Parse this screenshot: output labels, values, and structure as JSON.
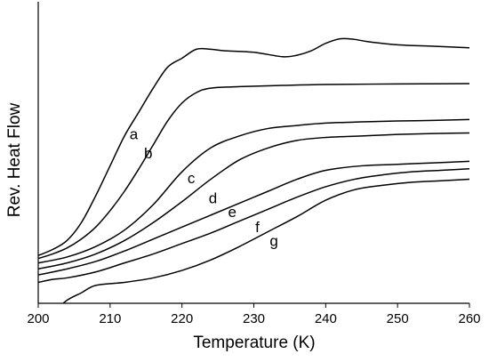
{
  "chart_data": {
    "type": "line",
    "xlabel": "Temperature (K)",
    "ylabel": "Rev. Heat Flow",
    "xlim": [
      200,
      260
    ],
    "ylim": [
      0,
      100
    ],
    "xticks": [
      "200",
      "210",
      "220",
      "230",
      "240",
      "250",
      "260"
    ],
    "grid": false,
    "legend": "none",
    "series": [
      {
        "name": "a",
        "label_x": 213.3,
        "label_y": 56.3,
        "points": [
          [
            200,
            16
          ],
          [
            202,
            18
          ],
          [
            204,
            21
          ],
          [
            206,
            27
          ],
          [
            208,
            36
          ],
          [
            210,
            46
          ],
          [
            212,
            56
          ],
          [
            214,
            64
          ],
          [
            216,
            72
          ],
          [
            218,
            79
          ],
          [
            220,
            82
          ],
          [
            222,
            85
          ],
          [
            224,
            85
          ],
          [
            226,
            84.5
          ],
          [
            230,
            84
          ],
          [
            234,
            82.5
          ],
          [
            236,
            83
          ],
          [
            238,
            84.5
          ],
          [
            240,
            87
          ],
          [
            242,
            88.5
          ],
          [
            244,
            88.3
          ],
          [
            246,
            87.5
          ],
          [
            250,
            86.5
          ],
          [
            255,
            86
          ],
          [
            260,
            85.5
          ]
        ]
      },
      {
        "name": "b",
        "label_x": 215.3,
        "label_y": 49.8,
        "points": [
          [
            200,
            15
          ],
          [
            202,
            16.5
          ],
          [
            204,
            18.5
          ],
          [
            206,
            21.5
          ],
          [
            208,
            25.5
          ],
          [
            210,
            31
          ],
          [
            212,
            37.5
          ],
          [
            214,
            45
          ],
          [
            216,
            53
          ],
          [
            218,
            61
          ],
          [
            220,
            67
          ],
          [
            222,
            70.5
          ],
          [
            224,
            72
          ],
          [
            228,
            72.5
          ],
          [
            234,
            72.9
          ],
          [
            240,
            73.2
          ],
          [
            250,
            73.4
          ],
          [
            260,
            73.5
          ]
        ]
      },
      {
        "name": "c",
        "label_x": 221.3,
        "label_y": 41.5,
        "points": [
          [
            200,
            13.5
          ],
          [
            204,
            15.5
          ],
          [
            208,
            19
          ],
          [
            212,
            24.5
          ],
          [
            216,
            33
          ],
          [
            220,
            44
          ],
          [
            224,
            52
          ],
          [
            228,
            56
          ],
          [
            232,
            58.5
          ],
          [
            236,
            59.5
          ],
          [
            240,
            60.3
          ],
          [
            245,
            60.7
          ],
          [
            250,
            61
          ],
          [
            255,
            61.2
          ],
          [
            260,
            61.5
          ]
        ]
      },
      {
        "name": "d",
        "label_x": 224.3,
        "label_y": 34.8,
        "points": [
          [
            200,
            11.5
          ],
          [
            204,
            13.5
          ],
          [
            208,
            16.5
          ],
          [
            212,
            21
          ],
          [
            216,
            27
          ],
          [
            220,
            34
          ],
          [
            224,
            41.5
          ],
          [
            228,
            48
          ],
          [
            232,
            52
          ],
          [
            236,
            54.5
          ],
          [
            240,
            55.5
          ],
          [
            245,
            56
          ],
          [
            250,
            56.5
          ],
          [
            255,
            56.8
          ],
          [
            260,
            57
          ]
        ]
      },
      {
        "name": "e",
        "label_x": 227.0,
        "label_y": 30.2,
        "points": [
          [
            200,
            9.5
          ],
          [
            204,
            11.5
          ],
          [
            208,
            14
          ],
          [
            212,
            17.5
          ],
          [
            216,
            21.5
          ],
          [
            220,
            25.5
          ],
          [
            224,
            29.5
          ],
          [
            228,
            33.5
          ],
          [
            232,
            37.5
          ],
          [
            236,
            41.5
          ],
          [
            240,
            44.5
          ],
          [
            245,
            46
          ],
          [
            250,
            46.5
          ],
          [
            255,
            47
          ],
          [
            260,
            47.5
          ]
        ]
      },
      {
        "name": "f",
        "label_x": 230.5,
        "label_y": 25.2,
        "points": [
          [
            200,
            7
          ],
          [
            202,
            8
          ],
          [
            204,
            8.5
          ],
          [
            208,
            10.5
          ],
          [
            212,
            13.5
          ],
          [
            216,
            16.5
          ],
          [
            220,
            20
          ],
          [
            224,
            23.5
          ],
          [
            228,
            27.5
          ],
          [
            232,
            31.5
          ],
          [
            236,
            35.5
          ],
          [
            240,
            39
          ],
          [
            244,
            41.5
          ],
          [
            248,
            43
          ],
          [
            252,
            44
          ],
          [
            256,
            44.5
          ],
          [
            260,
            45
          ]
        ]
      },
      {
        "name": "g",
        "label_x": 232.8,
        "label_y": 20.5,
        "points": [
          [
            200,
            -5
          ],
          [
            202,
            -3
          ],
          [
            204,
            1
          ],
          [
            206,
            3.5
          ],
          [
            208,
            6
          ],
          [
            212,
            7
          ],
          [
            216,
            8.5
          ],
          [
            220,
            11
          ],
          [
            224,
            14.5
          ],
          [
            228,
            19
          ],
          [
            232,
            24
          ],
          [
            236,
            29
          ],
          [
            240,
            34.5
          ],
          [
            244,
            38
          ],
          [
            248,
            39.5
          ],
          [
            252,
            40.5
          ],
          [
            256,
            41
          ],
          [
            260,
            41.5
          ]
        ]
      }
    ]
  }
}
